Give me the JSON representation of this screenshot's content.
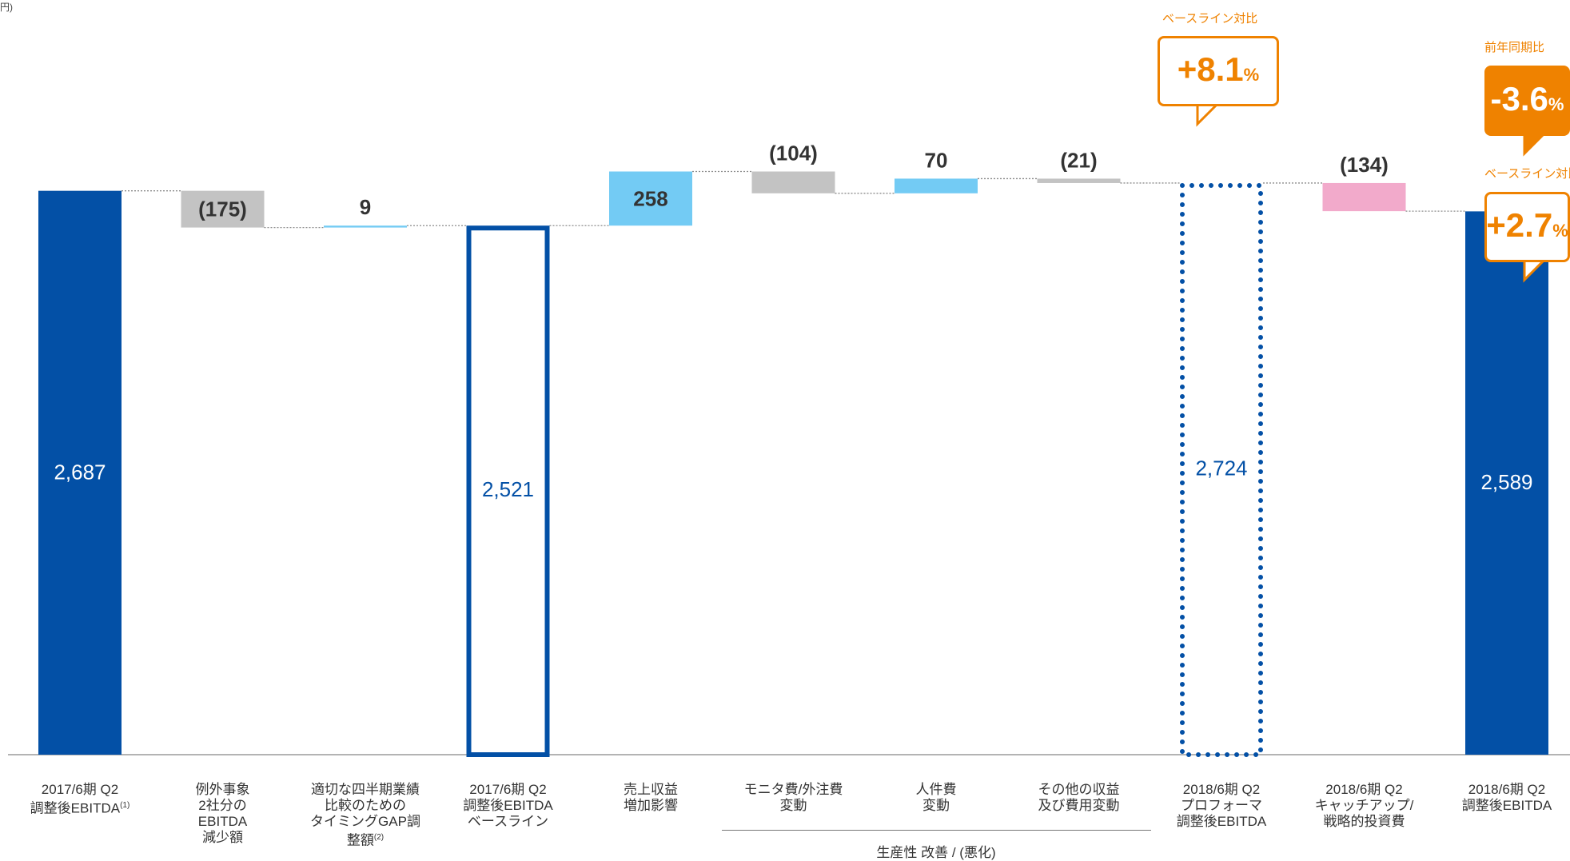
{
  "unit_note": "円)",
  "chart_data": {
    "type": "waterfall",
    "baseline_value": 0,
    "steps": [
      {
        "category": "2017/6期 Q2\n調整後EBITDA",
        "footnote": "(1)",
        "kind": "total",
        "value": 2687,
        "label": "2,687",
        "color": "#0350a6"
      },
      {
        "category": "例外事象\n2社分の\nEBITDA\n減少額",
        "footnote": "",
        "kind": "delta",
        "value": -175,
        "label": "(175)",
        "color": "#c3c3c3"
      },
      {
        "category": "適切な四半期業績\n比較のための\nタイミングGAP調整額",
        "footnote": "(2)",
        "kind": "delta",
        "value": 9,
        "label": "9",
        "color": "#73cbf4"
      },
      {
        "category": "2017/6期 Q2\n調整後EBITDA\nベースライン",
        "footnote": "",
        "kind": "total-outline",
        "value": 2521,
        "label": "2,521",
        "color": "#0350a6"
      },
      {
        "category": "売上収益\n増加影響",
        "footnote": "",
        "kind": "delta",
        "value": 258,
        "label": "258",
        "color": "#73cbf4"
      },
      {
        "category": "モニタ費/外注費\n変動",
        "footnote": "",
        "kind": "delta",
        "value": -104,
        "label": "(104)",
        "color": "#c3c3c3"
      },
      {
        "category": "人件費\n変動",
        "footnote": "",
        "kind": "delta",
        "value": 70,
        "label": "70",
        "color": "#73cbf4"
      },
      {
        "category": "その他の収益\n及び費用変動",
        "footnote": "",
        "kind": "delta",
        "value": -21,
        "label": "(21)",
        "color": "#c3c3c3"
      },
      {
        "category": "2018/6期 Q2\nプロフォーマ\n調整後EBITDA",
        "footnote": "",
        "kind": "total-dotted",
        "value": 2724,
        "label": "2,724",
        "color": "#0350a6"
      },
      {
        "category": "2018/6期 Q2\nキャッチアップ/\n戦略的投資費",
        "footnote": "",
        "kind": "delta",
        "value": -134,
        "label": "(134)",
        "color": "#f2aacb"
      },
      {
        "category": "2018/6期 Q2\n調整後EBITDA",
        "footnote": "",
        "kind": "total",
        "value": 2589,
        "label": "2,589",
        "color": "#0350a6"
      }
    ],
    "bracket": {
      "label": "生産性 改善 / (悪化)",
      "from": 5,
      "to": 7
    },
    "callouts": [
      {
        "title": "ベースライン対比",
        "value": "+8.1",
        "unit": "%",
        "style": "outline",
        "step": 8
      },
      {
        "title": "前年同期比",
        "value": "-3.6",
        "unit": "%",
        "style": "filled",
        "step": 10
      },
      {
        "title": "ベースライン対比",
        "value": "+2.7",
        "unit": "%",
        "style": "outline",
        "step": 10
      }
    ],
    "colors": {
      "total": "#0350a6",
      "increase": "#73cbf4",
      "decrease": "#c3c3c3",
      "investment": "#f2aacb",
      "accent": "#ef8200"
    }
  }
}
